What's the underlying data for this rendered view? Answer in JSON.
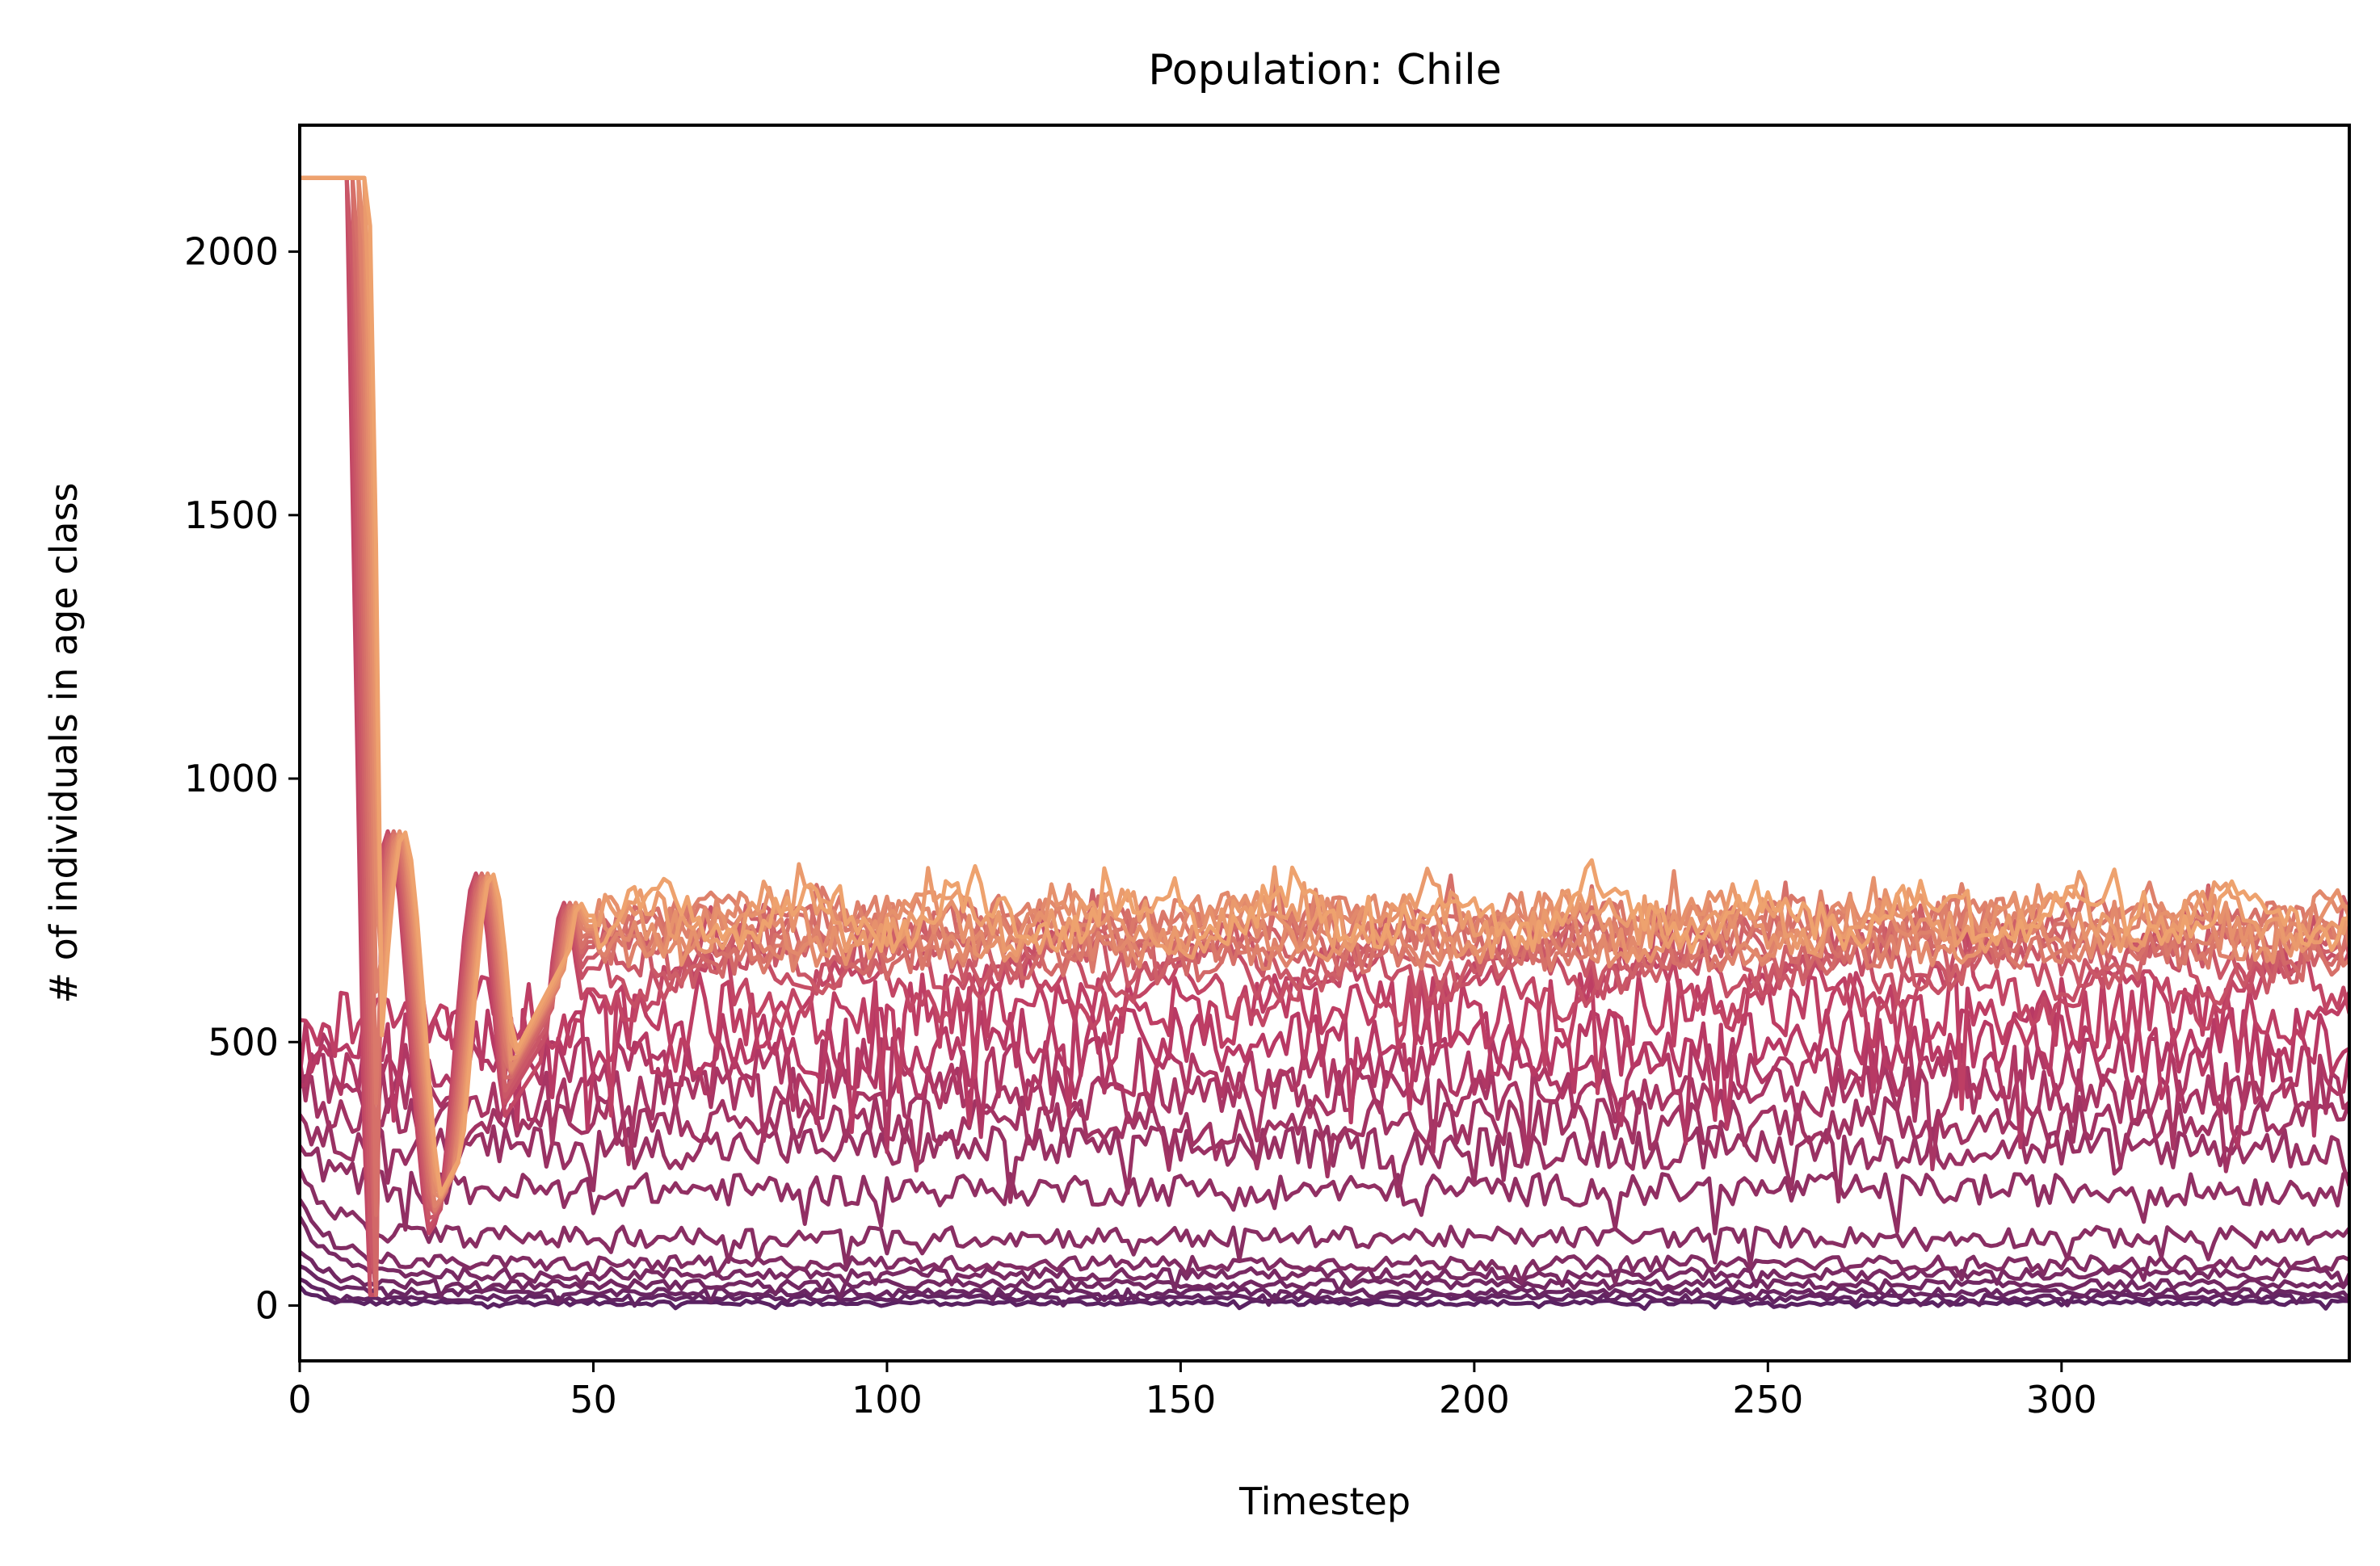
{
  "chart_data": {
    "type": "line",
    "title": "Population: Chile",
    "xlabel": "Timestep",
    "ylabel": "# of individuals in age class",
    "xlim": [
      0,
      349
    ],
    "ylim": [
      -105,
      2240
    ],
    "x_ticks": [
      0,
      50,
      100,
      150,
      200,
      250,
      300
    ],
    "y_ticks": [
      0,
      500,
      1000,
      1500,
      2000
    ],
    "x_tick_labels": [
      "0",
      "50",
      "100",
      "150",
      "200",
      "250",
      "300"
    ],
    "y_tick_labels": [
      "0",
      "500",
      "1000",
      "1500",
      "2000"
    ],
    "grid": false,
    "legend": "none",
    "n_timesteps": 350,
    "colormap": "flare",
    "color_low": "#5a2262",
    "color_high": "#eea26e",
    "series_summary": {
      "age_classes": 26,
      "initial_values": [
        2140,
        2140,
        2140,
        2140,
        2140,
        2140,
        2140,
        2140,
        2140,
        2140,
        2140,
        2140,
        500,
        490,
        470,
        440,
        400,
        350,
        300,
        250,
        200,
        160,
        110,
        80,
        50,
        35
      ],
      "steady_state_levels": [
        740,
        730,
        720,
        715,
        710,
        705,
        700,
        690,
        680,
        660,
        640,
        600,
        560,
        500,
        450,
        400,
        350,
        300,
        220,
        130,
        80,
        60,
        40,
        25,
        15,
        5
      ],
      "peak_1": {
        "x": 15,
        "value": 900
      },
      "peak_2": {
        "x": 30,
        "value": 820
      },
      "peak_3": {
        "x": 45,
        "value": 780
      }
    }
  }
}
